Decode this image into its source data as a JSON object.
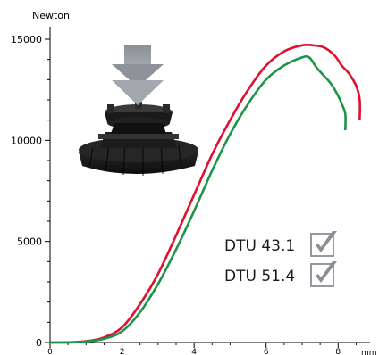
{
  "chart_data": {
    "type": "line",
    "ylabel": "Newton",
    "xlabel": "mm",
    "xlim": [
      0,
      8.8
    ],
    "ylim": [
      0,
      15000
    ],
    "grid": false,
    "y_ticks": [
      "0",
      "5000",
      "10000",
      "15000"
    ],
    "x_ticks": [
      "0",
      "2",
      "4",
      "6",
      "8"
    ],
    "series": [
      {
        "color": "#e0102f",
        "x": [
          0,
          0.5,
          1.0,
          1.5,
          2.0,
          2.5,
          3.0,
          3.5,
          4.0,
          4.5,
          5.0,
          5.5,
          6.0,
          6.5,
          7.0,
          7.3,
          7.6,
          7.9,
          8.1,
          8.3,
          8.5,
          8.6,
          8.6
        ],
        "y": [
          0,
          10,
          60,
          250,
          750,
          1900,
          3400,
          5300,
          7300,
          9300,
          11000,
          12500,
          13700,
          14400,
          14700,
          14700,
          14600,
          14200,
          13700,
          13300,
          12700,
          12000,
          11000
        ]
      },
      {
        "color": "#1e9448",
        "x": [
          0,
          0.5,
          1.0,
          1.5,
          2.0,
          2.5,
          3.0,
          3.5,
          4.0,
          4.5,
          5.0,
          5.5,
          6.0,
          6.5,
          7.0,
          7.2,
          7.4,
          7.6,
          7.8,
          8.0,
          8.1,
          8.2,
          8.2
        ],
        "y": [
          0,
          5,
          40,
          180,
          550,
          1500,
          2900,
          4600,
          6500,
          8500,
          10300,
          11800,
          13000,
          13700,
          14100,
          14100,
          13600,
          13200,
          12800,
          12200,
          11800,
          11300,
          10500
        ]
      }
    ],
    "legend": [
      {
        "label": "DTU 43.1",
        "checked": true
      },
      {
        "label": "DTU 51.4",
        "checked": true
      }
    ]
  }
}
